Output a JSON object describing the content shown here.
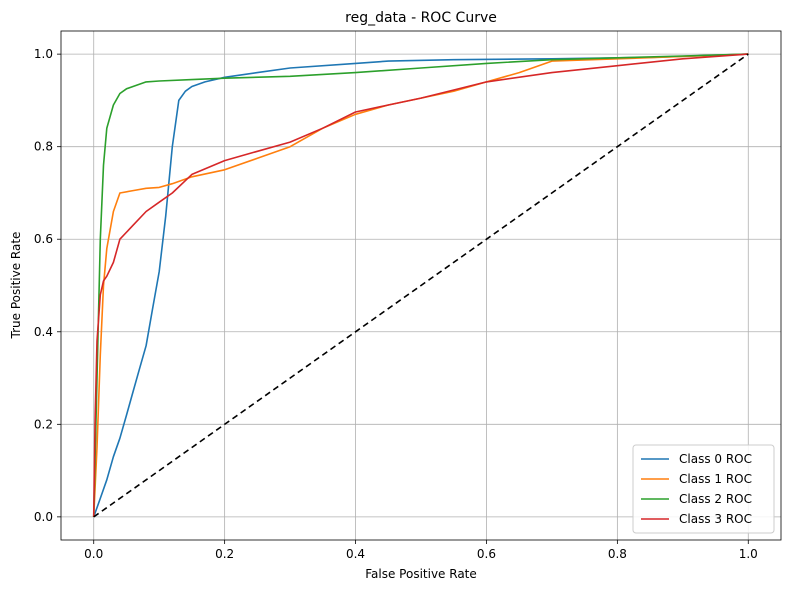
{
  "chart_data": {
    "type": "line",
    "title": "reg_data - ROC Curve",
    "xlabel": "False Positive Rate",
    "ylabel": "True Positive Rate",
    "xlim": [
      -0.05,
      1.05
    ],
    "ylim": [
      -0.05,
      1.05
    ],
    "xticks": [
      0.0,
      0.2,
      0.4,
      0.6,
      0.8,
      1.0
    ],
    "yticks": [
      0.0,
      0.2,
      0.4,
      0.6,
      0.8,
      1.0
    ],
    "xtick_labels": [
      "0.0",
      "0.2",
      "0.4",
      "0.6",
      "0.8",
      "1.0"
    ],
    "ytick_labels": [
      "0.0",
      "0.2",
      "0.4",
      "0.6",
      "0.8",
      "1.0"
    ],
    "grid": true,
    "legend_position": "lower-right",
    "series": [
      {
        "name": "Class 0 ROC",
        "color": "#1f77b4",
        "x": [
          0,
          0.01,
          0.02,
          0.03,
          0.04,
          0.05,
          0.06,
          0.07,
          0.08,
          0.09,
          0.1,
          0.11,
          0.12,
          0.13,
          0.14,
          0.15,
          0.17,
          0.2,
          0.25,
          0.3,
          0.4,
          0.45,
          0.55,
          0.7,
          0.85,
          1.0
        ],
        "y": [
          0,
          0.04,
          0.08,
          0.13,
          0.17,
          0.22,
          0.27,
          0.32,
          0.37,
          0.45,
          0.53,
          0.65,
          0.8,
          0.9,
          0.92,
          0.93,
          0.94,
          0.95,
          0.96,
          0.97,
          0.98,
          0.985,
          0.988,
          0.99,
          0.993,
          1.0
        ]
      },
      {
        "name": "Class 1 ROC",
        "color": "#ff7f0e",
        "x": [
          0,
          0.005,
          0.01,
          0.015,
          0.02,
          0.03,
          0.04,
          0.06,
          0.08,
          0.1,
          0.12,
          0.15,
          0.2,
          0.25,
          0.3,
          0.35,
          0.4,
          0.45,
          0.5,
          0.55,
          0.6,
          0.65,
          0.7,
          0.8,
          0.9,
          1.0
        ],
        "y": [
          0,
          0.15,
          0.35,
          0.5,
          0.58,
          0.66,
          0.7,
          0.705,
          0.71,
          0.712,
          0.72,
          0.735,
          0.75,
          0.775,
          0.8,
          0.84,
          0.87,
          0.89,
          0.905,
          0.92,
          0.94,
          0.96,
          0.985,
          0.99,
          0.995,
          1.0
        ]
      },
      {
        "name": "Class 2 ROC",
        "color": "#2ca02c",
        "x": [
          0,
          0.005,
          0.01,
          0.015,
          0.02,
          0.03,
          0.04,
          0.05,
          0.06,
          0.08,
          0.1,
          0.15,
          0.2,
          0.3,
          0.4,
          0.5,
          0.6,
          0.7,
          0.8,
          0.9,
          1.0
        ],
        "y": [
          0,
          0.3,
          0.6,
          0.76,
          0.84,
          0.89,
          0.915,
          0.925,
          0.93,
          0.94,
          0.942,
          0.945,
          0.948,
          0.952,
          0.96,
          0.97,
          0.98,
          0.988,
          0.992,
          0.996,
          1.0
        ]
      },
      {
        "name": "Class 3 ROC",
        "color": "#d62728",
        "x": [
          0,
          0.002,
          0.005,
          0.01,
          0.015,
          0.02,
          0.03,
          0.04,
          0.06,
          0.08,
          0.1,
          0.12,
          0.15,
          0.2,
          0.25,
          0.3,
          0.35,
          0.4,
          0.45,
          0.5,
          0.6,
          0.7,
          0.8,
          0.9,
          1.0
        ],
        "y": [
          0,
          0.2,
          0.38,
          0.48,
          0.51,
          0.52,
          0.55,
          0.6,
          0.63,
          0.66,
          0.68,
          0.7,
          0.74,
          0.77,
          0.79,
          0.81,
          0.84,
          0.875,
          0.89,
          0.905,
          0.94,
          0.96,
          0.975,
          0.99,
          1.0
        ]
      },
      {
        "name": "",
        "color": "#000000",
        "dashed": true,
        "in_legend": false,
        "x": [
          0,
          1
        ],
        "y": [
          0,
          1
        ]
      }
    ]
  }
}
